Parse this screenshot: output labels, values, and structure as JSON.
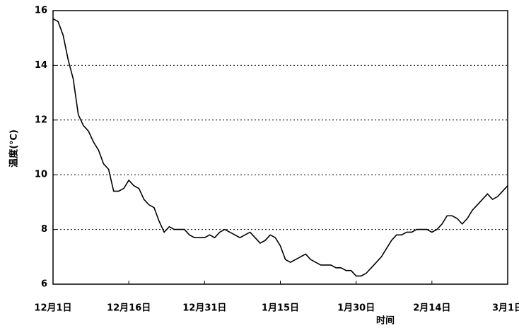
{
  "chart_data": {
    "type": "line",
    "xlabel": "时间",
    "ylabel": "温度(℃)",
    "x": [
      0,
      1,
      2,
      3,
      4,
      5,
      6,
      7,
      8,
      9,
      10,
      11,
      12,
      13,
      14,
      15,
      16,
      17,
      18,
      19,
      20,
      21,
      22,
      23,
      24,
      25,
      26,
      27,
      28,
      29,
      30,
      31,
      32,
      33,
      34,
      35,
      36,
      37,
      38,
      39,
      40,
      41,
      42,
      43,
      44,
      45,
      46,
      47,
      48,
      49,
      50,
      51,
      52,
      53,
      54,
      55,
      56,
      57,
      58,
      59,
      60,
      61,
      62,
      63,
      64,
      65,
      66,
      67,
      68,
      69,
      70,
      71,
      72,
      73,
      74,
      75,
      76,
      77,
      78,
      79,
      80,
      81,
      82,
      83,
      84,
      85,
      86,
      87,
      88,
      89,
      90
    ],
    "series": [
      {
        "color": "#000000",
        "values": [
          15.7,
          15.6,
          15.1,
          14.2,
          13.5,
          12.2,
          11.8,
          11.6,
          11.2,
          10.9,
          10.4,
          10.2,
          9.4,
          9.4,
          9.5,
          9.8,
          9.6,
          9.5,
          9.1,
          8.9,
          8.8,
          8.3,
          7.9,
          8.1,
          8.0,
          8.0,
          8.0,
          7.8,
          7.7,
          7.7,
          7.7,
          7.8,
          7.7,
          7.9,
          8.0,
          7.9,
          7.8,
          7.7,
          7.8,
          7.9,
          7.7,
          7.5,
          7.6,
          7.8,
          7.7,
          7.4,
          6.9,
          6.8,
          6.9,
          7.0,
          7.1,
          6.9,
          6.8,
          6.7,
          6.7,
          6.7,
          6.6,
          6.6,
          6.5,
          6.5,
          6.3,
          6.3,
          6.4,
          6.6,
          6.8,
          7.0,
          7.3,
          7.6,
          7.8,
          7.8,
          7.9,
          7.9,
          8.0,
          8.0,
          8.0,
          7.9,
          8.0,
          8.2,
          8.5,
          8.5,
          8.4,
          8.2,
          8.4,
          8.7,
          8.9,
          9.1,
          9.3,
          9.1,
          9.2,
          9.4,
          9.6
        ]
      }
    ],
    "xlim": [
      0,
      90
    ],
    "xticks": [
      {
        "value": 0,
        "label": "12月1日"
      },
      {
        "value": 15,
        "label": "12月16日"
      },
      {
        "value": 30,
        "label": "12月31日"
      },
      {
        "value": 45,
        "label": "1月15日"
      },
      {
        "value": 60,
        "label": "1月30日"
      },
      {
        "value": 75,
        "label": "2月14日"
      },
      {
        "value": 90,
        "label": "3月1日"
      }
    ],
    "ylim": [
      6,
      16
    ],
    "yticks": [
      6,
      8,
      10,
      12,
      14,
      16
    ],
    "grid": true
  }
}
